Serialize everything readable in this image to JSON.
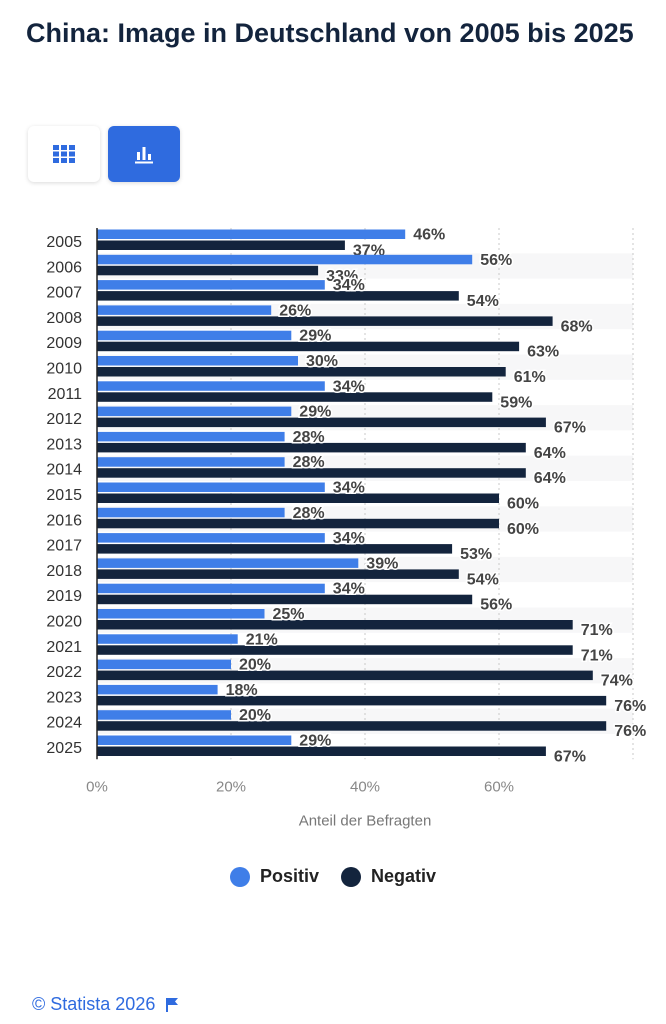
{
  "header": {
    "title": "China: Image in Deutschland von 2005 bis 2025"
  },
  "view_toggle": {
    "table_icon": "grid-icon",
    "chart_icon": "bar-chart-icon",
    "active": "chart"
  },
  "colors": {
    "positive": "#3f7ee8",
    "negative": "#13243d",
    "accent": "#2f6bdf"
  },
  "chart_data": {
    "type": "bar",
    "orientation": "horizontal",
    "title": "",
    "xlabel": "Anteil der Befragten",
    "ylabel": "",
    "categories": [
      "2005",
      "2006",
      "2007",
      "2008",
      "2009",
      "2010",
      "2011",
      "2012",
      "2013",
      "2014",
      "2015",
      "2016",
      "2017",
      "2018",
      "2019",
      "2020",
      "2021",
      "2022",
      "2023",
      "2024",
      "2025"
    ],
    "series": [
      {
        "name": "Positiv",
        "values": [
          46,
          56,
          34,
          26,
          29,
          30,
          34,
          29,
          28,
          28,
          34,
          28,
          34,
          39,
          34,
          25,
          21,
          20,
          18,
          20,
          29
        ]
      },
      {
        "name": "Negativ",
        "values": [
          37,
          33,
          54,
          68,
          63,
          61,
          59,
          67,
          64,
          64,
          60,
          60,
          53,
          54,
          56,
          71,
          71,
          74,
          76,
          76,
          67
        ]
      }
    ],
    "xlim": [
      0,
      80
    ],
    "xticks": [
      "0%",
      "20%",
      "40%",
      "60%"
    ],
    "value_suffix": "%",
    "grid": true,
    "legend_position": "bottom"
  },
  "legend": {
    "positive_label": "Positiv",
    "negative_label": "Negativ"
  },
  "footer": {
    "text": "© Statista 2026",
    "flag_icon": "flag-icon"
  }
}
